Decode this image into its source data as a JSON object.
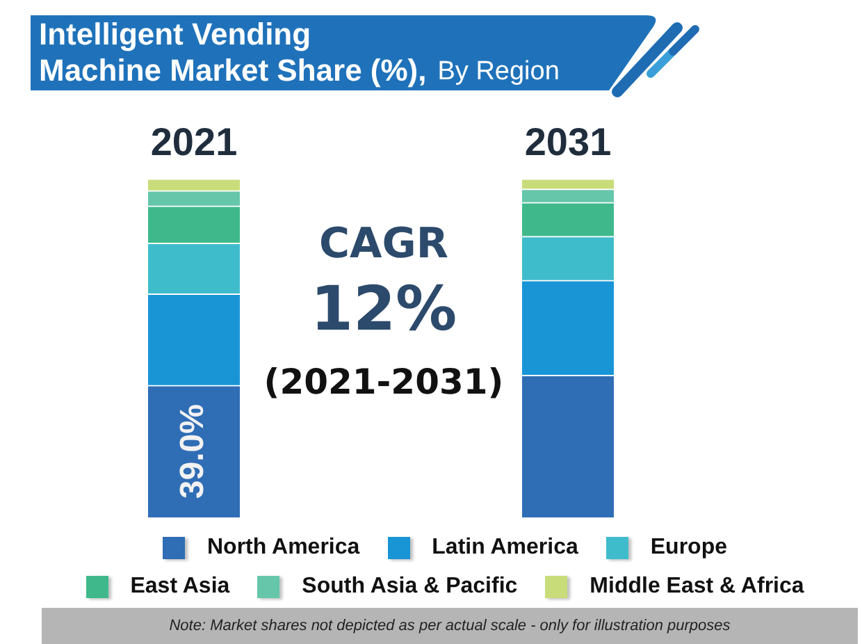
{
  "chart_data": {
    "type": "bar",
    "title": "Intelligent Vending Machine Market Share (%),",
    "subtitle": "By Region",
    "categories": [
      "2021",
      "2031"
    ],
    "stacked": true,
    "tick_labels": "x",
    "legend": "bottom",
    "series": [
      {
        "name": "North America",
        "color": "#2f6db5",
        "values": [
          39.0,
          42
        ],
        "value_labels": [
          "39.0%",
          null
        ]
      },
      {
        "name": "Latin America",
        "color": "#1995d6",
        "values": [
          27,
          28
        ]
      },
      {
        "name": "Europe",
        "color": "#3fbccc",
        "values": [
          15,
          13
        ]
      },
      {
        "name": "East Asia",
        "color": "#3fb98c",
        "values": [
          11,
          10
        ]
      },
      {
        "name": "South Asia & Pacific",
        "color": "#66c6aa",
        "values": [
          4.5,
          4
        ]
      },
      {
        "name": "Middle East & Africa",
        "color": "#c9dc7a",
        "values": [
          3.5,
          3
        ]
      }
    ],
    "annotations": [
      "CAGR",
      "12%",
      "(2021-2031)",
      "Note: Market shares not depicted as per actual scale - only for illustration purposes"
    ]
  }
}
